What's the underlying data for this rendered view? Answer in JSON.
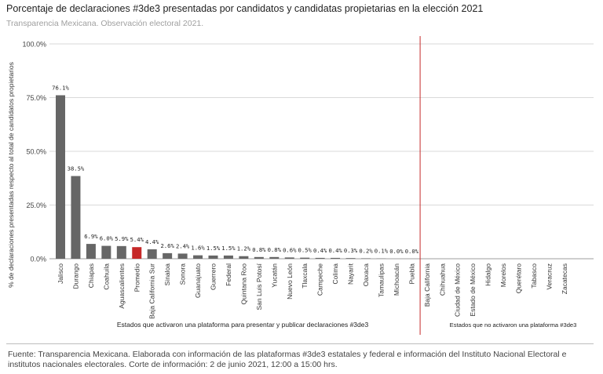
{
  "header": {
    "title": "Porcentaje de declaraciones #3de3 presentadas por candidatos y candidatas propietarias en la elección 2021",
    "subtitle": "Transparencia Mexicana. Observación electoral 2021."
  },
  "footer": {
    "source": "Fuente: Transparencia Mexicana. Elaborada con información de las plataformas #3de3 estatales y federal e información del Instituto Nacional Electoral e institutos nacionales electorales. Corte de información: 2 de junio 2021, 12:00 a 15:00 hrs."
  },
  "colors": {
    "bar": "#666666",
    "highlight": "#c62828",
    "divider": "#c62828",
    "grid": "#d9d9d9"
  },
  "chart_data": {
    "type": "bar",
    "title": "Porcentaje de declaraciones #3de3 presentadas por candidatos y candidatas propietarias en la elección 2021",
    "ylabel": "% de declaraciones presentadas respecto al total de candidatos propietarios",
    "ylim": [
      0,
      100
    ],
    "yticks": [
      "0.0%",
      "25.0%",
      "50.0%",
      "75.0%",
      "100.0%"
    ],
    "grid": true,
    "legend": "none",
    "highlight_category": "Promedio",
    "groups": [
      {
        "label": "Estados que activaron una plataforma para presentar y publicar declaraciones #3de3"
      },
      {
        "label": "Estados que no activaron una plataforma #3de3"
      }
    ],
    "categories": [
      "Jalisco",
      "Durango",
      "Chiapas",
      "Coahuila",
      "Aguascalientes",
      "Promedio",
      "Baja California Sur",
      "Sinaloa",
      "Sonora",
      "Guanajuato",
      "Guerrero",
      "Federal",
      "Quintana Roo",
      "San Luis Potosí",
      "Yucatán",
      "Nuevo León",
      "Tlaxcala",
      "Campeche",
      "Colima",
      "Nayarit",
      "Oaxaca",
      "Tamaulipas",
      "Michoacán",
      "Puebla",
      "Baja California",
      "Chihuahua",
      "Ciudad de México",
      "Estado de México",
      "Hidalgo",
      "Morelos",
      "Querétaro",
      "Tabasco",
      "Veracruz",
      "Zacatecas"
    ],
    "values": [
      76.1,
      38.5,
      6.9,
      6.0,
      5.9,
      5.4,
      4.4,
      2.6,
      2.4,
      1.6,
      1.5,
      1.5,
      1.2,
      0.8,
      0.8,
      0.6,
      0.5,
      0.4,
      0.4,
      0.3,
      0.2,
      0.1,
      0.0,
      0.0,
      null,
      null,
      null,
      null,
      null,
      null,
      null,
      null,
      null,
      null
    ],
    "data_labels": [
      "76.1%",
      "38.5%",
      "6.9%",
      "6.0%",
      "5.9%",
      "5.4%",
      "4.4%",
      "2.6%",
      "2.4%",
      "1.6%",
      "1.5%",
      "1.5%",
      "1.2%",
      "0.8%",
      "0.8%",
      "0.6%",
      "0.5%",
      "0.4%",
      "0.4%",
      "0.3%",
      "0.2%",
      "0.1%",
      "0.0%",
      "0.0%",
      "",
      "",
      "",
      "",
      "",
      "",
      "",
      "",
      "",
      ""
    ]
  }
}
